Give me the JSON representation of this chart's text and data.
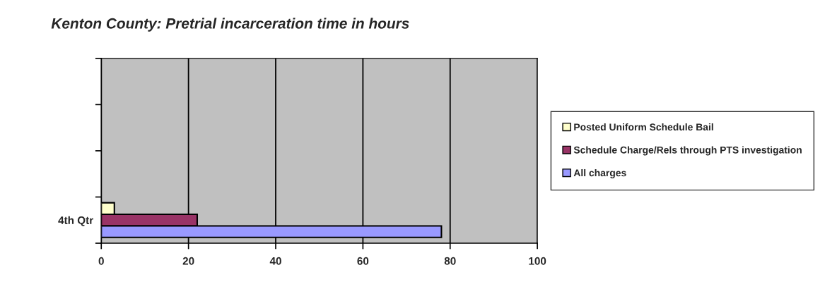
{
  "chart_data": {
    "type": "bar",
    "orientation": "horizontal",
    "title": "Kenton County: Pretrial incarceration time in hours",
    "categories": [
      null,
      null,
      null,
      "4th Qtr"
    ],
    "series": [
      {
        "name": "Posted Uniform Schedule Bail",
        "color": "#ffffcc",
        "values": [
          null,
          null,
          null,
          3
        ]
      },
      {
        "name": "Schedule Charge/Rels through PTS investigation",
        "color": "#993366",
        "values": [
          null,
          null,
          null,
          22
        ]
      },
      {
        "name": "All charges",
        "color": "#9999ff",
        "values": [
          null,
          null,
          null,
          78
        ]
      }
    ],
    "xlim": [
      0,
      100
    ],
    "xticks": [
      0,
      20,
      40,
      60,
      80,
      100
    ],
    "grid": "x",
    "legend": "right"
  }
}
